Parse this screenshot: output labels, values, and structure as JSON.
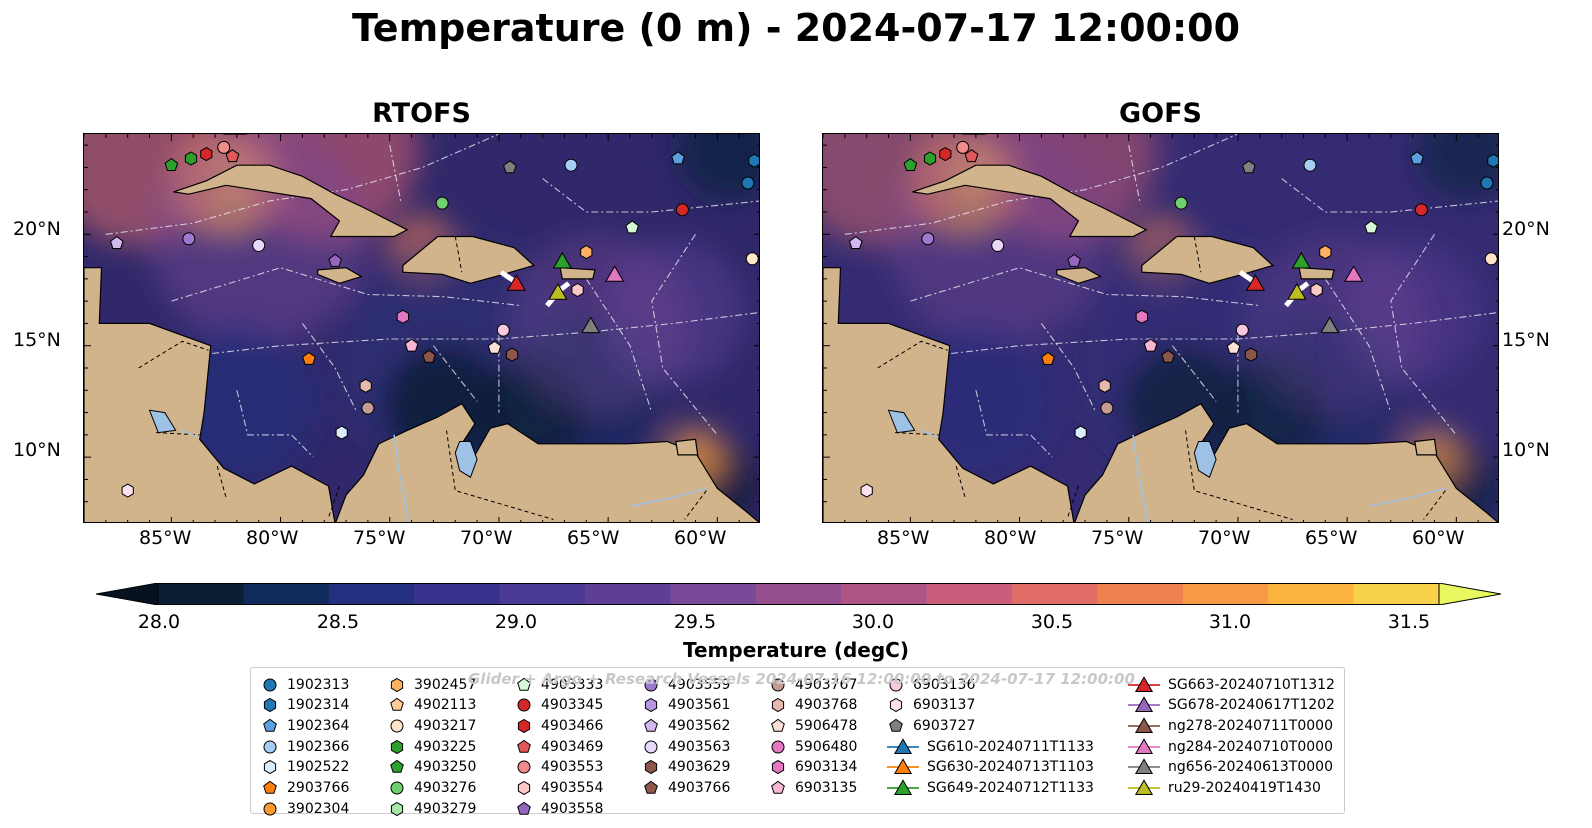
{
  "title": "Temperature (0 m) - 2024-07-17 12:00:00",
  "panels": [
    {
      "title": "RTOFS"
    },
    {
      "title": "GOFS"
    }
  ],
  "axes": {
    "lon_labels": [
      "85°W",
      "80°W",
      "75°W",
      "70°W",
      "65°W",
      "60°W"
    ],
    "lat_labels": [
      "20°N",
      "15°N",
      "10°N"
    ],
    "lon_range": [
      -89,
      -58
    ],
    "lat_range": [
      7,
      24.5
    ]
  },
  "colorbar": {
    "label": "Temperature (degC)",
    "min": 28.0,
    "max": 31.5,
    "step": 0.25,
    "extend": "both",
    "tick_labels": [
      "28.0",
      "28.5",
      "29.0",
      "29.5",
      "30.0",
      "30.5",
      "31.0",
      "31.5"
    ],
    "colors": [
      "#0a1f33",
      "#102a5c",
      "#23307f",
      "#39328d",
      "#4a3a95",
      "#5e3f98",
      "#7a4a98",
      "#954f8f",
      "#ae5586",
      "#c95d7b",
      "#e06c66",
      "#ef8150",
      "#f89a43",
      "#fbb23f",
      "#f8d14a"
    ],
    "under_color": "#06121f",
    "over_color": "#e8f860"
  },
  "legend_watermark": "Glider + Argo + Research Vessels 2024-07-16 12:00:00 to 2024-07-17 12:00:00",
  "legend": [
    {
      "label": "1902313",
      "marker": "circle",
      "color": "#1f77b4"
    },
    {
      "label": "1902314",
      "marker": "hexagon",
      "color": "#1f77b4"
    },
    {
      "label": "1902364",
      "marker": "pentagon",
      "color": "#5aa0e0"
    },
    {
      "label": "1902366",
      "marker": "circle",
      "color": "#a6cef5"
    },
    {
      "label": "1902522",
      "marker": "hexagon",
      "color": "#d8ecfb"
    },
    {
      "label": "2903766",
      "marker": "pentagon",
      "color": "#ff7f0e"
    },
    {
      "label": "3902304",
      "marker": "circle",
      "color": "#ff9a2e"
    },
    {
      "label": "3902457",
      "marker": "hexagon",
      "color": "#ffb061"
    },
    {
      "label": "4902113",
      "marker": "pentagon",
      "color": "#ffcc99"
    },
    {
      "label": "4903217",
      "marker": "circle",
      "color": "#ffe5c8"
    },
    {
      "label": "4903225",
      "marker": "hexagon",
      "color": "#2ca02c"
    },
    {
      "label": "4903250",
      "marker": "pentagon",
      "color": "#2ca02c"
    },
    {
      "label": "4903276",
      "marker": "circle",
      "color": "#6fd06f"
    },
    {
      "label": "4903279",
      "marker": "hexagon",
      "color": "#a5e8a5"
    },
    {
      "label": "4903333",
      "marker": "pentagon",
      "color": "#d6f8d6"
    },
    {
      "label": "4903345",
      "marker": "circle",
      "color": "#d62728"
    },
    {
      "label": "4903466",
      "marker": "hexagon",
      "color": "#d62728"
    },
    {
      "label": "4903469",
      "marker": "pentagon",
      "color": "#e3585a"
    },
    {
      "label": "4903553",
      "marker": "circle",
      "color": "#f08c8c"
    },
    {
      "label": "4903554",
      "marker": "hexagon",
      "color": "#fbc8c8"
    },
    {
      "label": "4903558",
      "marker": "pentagon",
      "color": "#9467bd"
    },
    {
      "label": "4903559",
      "marker": "circle",
      "color": "#9d7ad0"
    },
    {
      "label": "4903561",
      "marker": "hexagon",
      "color": "#b896e0"
    },
    {
      "label": "4903562",
      "marker": "pentagon",
      "color": "#d2b8ef"
    },
    {
      "label": "4903563",
      "marker": "circle",
      "color": "#e8d8fa"
    },
    {
      "label": "4903629",
      "marker": "hexagon",
      "color": "#8c564b"
    },
    {
      "label": "4903766",
      "marker": "pentagon",
      "color": "#8c564b"
    },
    {
      "label": "4903767",
      "marker": "circle",
      "color": "#c49c94"
    },
    {
      "label": "4903768",
      "marker": "hexagon",
      "color": "#e6b8ae"
    },
    {
      "label": "5906478",
      "marker": "pentagon",
      "color": "#fbe0d8"
    },
    {
      "label": "5906480",
      "marker": "circle",
      "color": "#e377c2"
    },
    {
      "label": "6903134",
      "marker": "hexagon",
      "color": "#e377c2"
    },
    {
      "label": "6903135",
      "marker": "pentagon",
      "color": "#f7b6d2"
    },
    {
      "label": "6903136",
      "marker": "circle",
      "color": "#f9c8e0"
    },
    {
      "label": "6903137",
      "marker": "hexagon",
      "color": "#fde0ee"
    },
    {
      "label": "6903727",
      "marker": "pentagon",
      "color": "#7f7f7f"
    },
    {
      "label": "SG610-20240711T1133",
      "marker": "triangle",
      "color": "#1f77b4"
    },
    {
      "label": "SG630-20240713T1103",
      "marker": "triangle",
      "color": "#ff7f0e"
    },
    {
      "label": "SG649-20240712T1133",
      "marker": "triangle",
      "color": "#2ca02c"
    },
    {
      "label": "SG663-20240710T1312",
      "marker": "triangle",
      "color": "#d62728"
    },
    {
      "label": "SG678-20240617T1202",
      "marker": "triangle",
      "color": "#9467bd"
    },
    {
      "label": "ng278-20240711T0000",
      "marker": "triangle",
      "color": "#8c564b"
    },
    {
      "label": "ng284-20240710T0000",
      "marker": "triangle",
      "color": "#e377c2"
    },
    {
      "label": "ng656-20240613T0000",
      "marker": "triangle",
      "color": "#7f7f7f"
    },
    {
      "label": "ru29-20240419T1430",
      "marker": "triangle",
      "color": "#bcbd22"
    }
  ],
  "observations": [
    {
      "id": "4903250",
      "lon": -85.0,
      "lat": 23.1
    },
    {
      "id": "4903225",
      "lon": -84.1,
      "lat": 23.4
    },
    {
      "id": "4903466",
      "lon": -83.4,
      "lat": 23.6
    },
    {
      "id": "4903553",
      "lon": -82.6,
      "lat": 23.9
    },
    {
      "id": "4903469",
      "lon": -82.2,
      "lat": 23.5
    },
    {
      "id": "6903727",
      "lon": -69.5,
      "lat": 23.0
    },
    {
      "id": "1902366",
      "lon": -66.7,
      "lat": 23.1
    },
    {
      "id": "1902364",
      "lon": -61.8,
      "lat": 23.4
    },
    {
      "id": "1902314",
      "lon": -58.3,
      "lat": 23.3
    },
    {
      "id": "1902313",
      "lon": -58.6,
      "lat": 22.3
    },
    {
      "id": "4903276",
      "lon": -72.6,
      "lat": 21.4
    },
    {
      "id": "4903345",
      "lon": -61.6,
      "lat": 21.1
    },
    {
      "id": "4903333",
      "lon": -63.9,
      "lat": 20.3
    },
    {
      "id": "4903562",
      "lon": -87.5,
      "lat": 19.6
    },
    {
      "id": "4903559",
      "lon": -84.2,
      "lat": 19.8
    },
    {
      "id": "4903563",
      "lon": -81.0,
      "lat": 19.5
    },
    {
      "id": "4903558",
      "lon": -77.5,
      "lat": 18.8
    },
    {
      "id": "3902457",
      "lon": -66.0,
      "lat": 19.2
    },
    {
      "id": "4903217",
      "lon": -58.4,
      "lat": 18.9
    },
    {
      "id": "4903554",
      "lon": -66.4,
      "lat": 17.5
    },
    {
      "id": "6903134",
      "lon": -74.4,
      "lat": 16.3
    },
    {
      "id": "6903136",
      "lon": -69.8,
      "lat": 15.7
    },
    {
      "id": "6903135",
      "lon": -74.0,
      "lat": 15.0
    },
    {
      "id": "4903766",
      "lon": -73.2,
      "lat": 14.5
    },
    {
      "id": "5906478",
      "lon": -70.2,
      "lat": 14.9
    },
    {
      "id": "4903629",
      "lon": -69.4,
      "lat": 14.6
    },
    {
      "id": "2903766",
      "lon": -78.7,
      "lat": 14.4
    },
    {
      "id": "4903768",
      "lon": -76.1,
      "lat": 13.2
    },
    {
      "id": "4903767",
      "lon": -76.0,
      "lat": 12.2
    },
    {
      "id": "1902522",
      "lon": -77.2,
      "lat": 11.1
    },
    {
      "id": "6903137",
      "lon": -87.0,
      "lat": 8.5
    },
    {
      "id": "SG663-20240710T1312",
      "lon": -69.2,
      "lat": 17.8
    },
    {
      "id": "SG649-20240712T1133",
      "lon": -67.1,
      "lat": 18.8
    },
    {
      "id": "ru29-20240419T1430",
      "lon": -67.3,
      "lat": 17.4
    },
    {
      "id": "ng284-20240710T0000",
      "lon": -64.7,
      "lat": 18.2
    },
    {
      "id": "ng656-20240613T0000",
      "lon": -65.8,
      "lat": 15.9
    }
  ]
}
